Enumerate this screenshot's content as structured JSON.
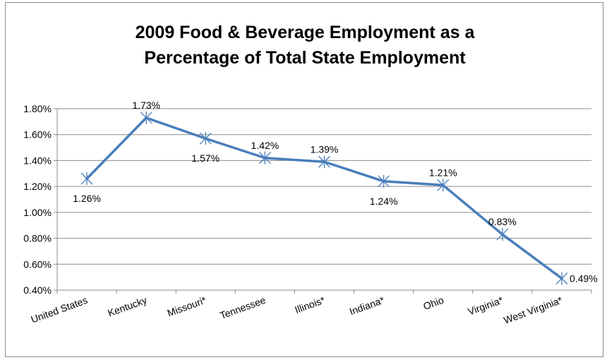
{
  "chart_data": {
    "type": "line",
    "title_lines": [
      "2009 Food & Beverage Employment as a",
      "Percentage of Total State Employment"
    ],
    "categories": [
      "United States",
      "Kentucky",
      "Missouri*",
      "Tennessee",
      "Illinois*",
      "Indiana*",
      "Ohio",
      "Virginia*",
      "West Virginia*"
    ],
    "series": [
      {
        "values": [
          1.26,
          1.73,
          1.57,
          1.42,
          1.39,
          1.24,
          1.21,
          0.83,
          0.49
        ]
      }
    ],
    "data_labels": [
      "1.26%",
      "1.73%",
      "1.57%",
      "1.42%",
      "1.39%",
      "1.24%",
      "1.21%",
      "0.83%",
      "0.49%"
    ],
    "label_positions": [
      "below",
      "above",
      "below",
      "above",
      "above",
      "below",
      "above",
      "above",
      "right"
    ],
    "y_ticks": [
      "0.40%",
      "0.60%",
      "0.80%",
      "1.00%",
      "1.20%",
      "1.40%",
      "1.60%",
      "1.80%"
    ],
    "ylim": [
      0.4,
      1.8
    ],
    "y_tick_step": 0.2,
    "grid": "horizontal",
    "marker": "asterisk",
    "line_color": "#4a7ebb"
  }
}
